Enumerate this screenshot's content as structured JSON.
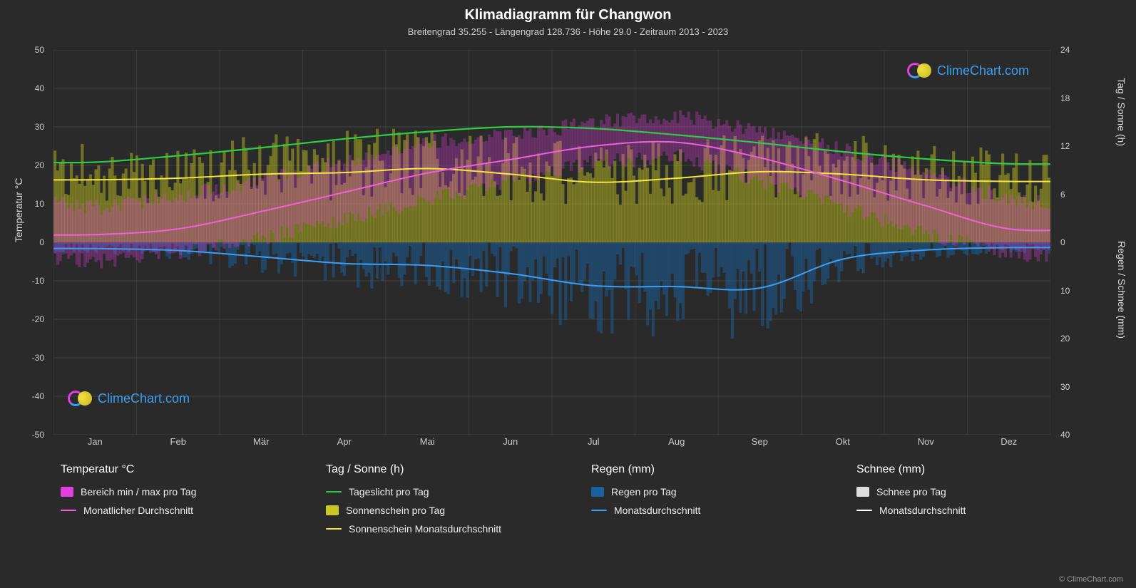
{
  "title": "Klimadiagramm für Changwon",
  "subtitle": "Breitengrad 35.255 - Längengrad 128.736 - Höhe 29.0 - Zeitraum 2013 - 2023",
  "watermark_text": "ClimeChart.com",
  "copyright": "© ClimeChart.com",
  "background_color": "#2a2a2a",
  "grid_color": "#555555",
  "axis_color": "#cccccc",
  "plot": {
    "months": [
      "Jan",
      "Feb",
      "Mär",
      "Apr",
      "Mai",
      "Jun",
      "Jul",
      "Aug",
      "Sep",
      "Okt",
      "Nov",
      "Dez"
    ],
    "temp_axis": {
      "min": -50,
      "max": 50,
      "step": 10,
      "label": "Temperatur °C"
    },
    "sun_axis": {
      "min": 0,
      "max": 24,
      "step": 6,
      "label": "Tag / Sonne (h)"
    },
    "rain_axis": {
      "min": 0,
      "max": 40,
      "step": 10,
      "label": "Regen / Schnee (mm)"
    }
  },
  "series": {
    "daylight": {
      "color": "#2ecc40",
      "monthly": [
        10.0,
        10.8,
        11.8,
        12.9,
        13.8,
        14.4,
        14.2,
        13.4,
        12.4,
        11.3,
        10.4,
        9.8
      ]
    },
    "sunshine_avg": {
      "color": "#f5e642",
      "monthly": [
        7.8,
        8.0,
        8.5,
        8.7,
        9.2,
        8.5,
        7.5,
        8.0,
        8.8,
        8.5,
        7.8,
        7.6
      ]
    },
    "temp_avg": {
      "color": "#f060d8",
      "monthly": [
        2.0,
        3.5,
        8.0,
        13.0,
        18.0,
        21.5,
        25.0,
        26.0,
        22.0,
        16.0,
        9.5,
        3.5
      ]
    },
    "temp_max": {
      "monthly": [
        9,
        12,
        16,
        21,
        26,
        28,
        31,
        33,
        29,
        24,
        18,
        11
      ]
    },
    "temp_min": {
      "monthly": [
        -5,
        -3,
        1,
        6,
        11,
        16,
        21,
        22,
        16,
        9,
        2,
        -3
      ]
    },
    "rain_avg": {
      "color": "#3a9ff5",
      "monthly": [
        1.3,
        1.7,
        3.0,
        4.4,
        4.8,
        6.5,
        9.0,
        9.2,
        9.5,
        3.5,
        1.6,
        1.1
      ]
    },
    "snow_avg": {
      "color": "#ffffff",
      "monthly": [
        0.2,
        0.1,
        0.0,
        0.0,
        0.0,
        0.0,
        0.0,
        0.0,
        0.0,
        0.0,
        0.0,
        0.1
      ]
    },
    "magenta_band_color": "#e040e0",
    "sunshine_band_color": "#c8c820",
    "rain_band_color": "#1a5f9e"
  },
  "legend": {
    "col1_title": "Temperatur °C",
    "col1_items": [
      {
        "swatch": "block",
        "color": "#e040e0",
        "label": "Bereich min / max pro Tag"
      },
      {
        "swatch": "line",
        "color": "#f060d8",
        "label": "Monatlicher Durchschnitt"
      }
    ],
    "col2_title": "Tag / Sonne (h)",
    "col2_items": [
      {
        "swatch": "line",
        "color": "#2ecc40",
        "label": "Tageslicht pro Tag"
      },
      {
        "swatch": "block",
        "color": "#c8c820",
        "label": "Sonnenschein pro Tag"
      },
      {
        "swatch": "line",
        "color": "#f5e642",
        "label": "Sonnenschein Monatsdurchschnitt"
      }
    ],
    "col3_title": "Regen (mm)",
    "col3_items": [
      {
        "swatch": "block",
        "color": "#1a5f9e",
        "label": "Regen pro Tag"
      },
      {
        "swatch": "line",
        "color": "#3a9ff5",
        "label": "Monatsdurchschnitt"
      }
    ],
    "col4_title": "Schnee (mm)",
    "col4_items": [
      {
        "swatch": "block",
        "color": "#dddddd",
        "label": "Schnee pro Tag"
      },
      {
        "swatch": "line",
        "color": "#ffffff",
        "label": "Monatsdurchschnitt"
      }
    ]
  }
}
